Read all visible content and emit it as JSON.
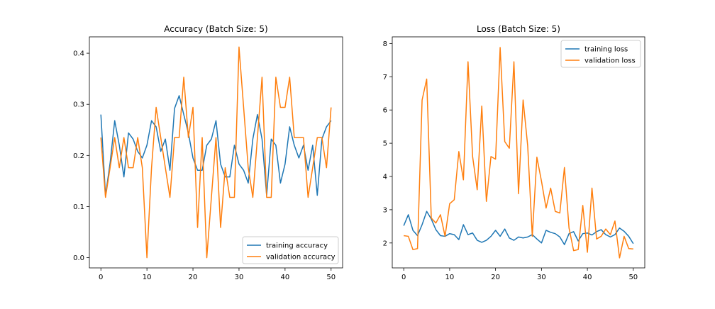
{
  "chart_data": [
    {
      "type": "line",
      "title": "Accuracy (Batch Size: 5)",
      "xlabel": "",
      "ylabel": "",
      "xlim": [
        -2.5,
        52.5
      ],
      "ylim": [
        -0.02,
        0.432
      ],
      "xticks": [
        0,
        10,
        20,
        30,
        40,
        50
      ],
      "yticks": [
        0.0,
        0.1,
        0.2,
        0.3,
        0.4
      ],
      "ytick_labels": [
        "0.0",
        "0.1",
        "0.2",
        "0.3",
        "0.4"
      ],
      "grid": false,
      "legend_position": "lower-right",
      "x": [
        0,
        1,
        2,
        3,
        4,
        5,
        6,
        7,
        8,
        9,
        10,
        11,
        12,
        13,
        14,
        15,
        16,
        17,
        18,
        19,
        20,
        21,
        22,
        23,
        24,
        25,
        26,
        27,
        28,
        29,
        30,
        31,
        32,
        33,
        34,
        35,
        36,
        37,
        38,
        39,
        40,
        41,
        42,
        43,
        44,
        45,
        46,
        47,
        48,
        49,
        50
      ],
      "series": [
        {
          "name": "training accuracy",
          "color": "#1f77b4",
          "values": [
            0.28,
            0.122,
            0.185,
            0.268,
            0.22,
            0.158,
            0.244,
            0.232,
            0.208,
            0.195,
            0.22,
            0.268,
            0.256,
            0.208,
            0.232,
            0.171,
            0.292,
            0.317,
            0.28,
            0.244,
            0.195,
            0.171,
            0.171,
            0.22,
            0.232,
            0.268,
            0.183,
            0.158,
            0.158,
            0.22,
            0.183,
            0.171,
            0.146,
            0.232,
            0.28,
            0.232,
            0.122,
            0.232,
            0.22,
            0.146,
            0.183,
            0.256,
            0.22,
            0.195,
            0.22,
            0.171,
            0.22,
            0.122,
            0.232,
            0.256,
            0.268
          ]
        },
        {
          "name": "validation accuracy",
          "color": "#ff7f0e",
          "values": [
            0.235,
            0.118,
            0.176,
            0.235,
            0.176,
            0.235,
            0.176,
            0.176,
            0.235,
            0.176,
            0.0,
            0.176,
            0.294,
            0.235,
            0.176,
            0.118,
            0.235,
            0.235,
            0.353,
            0.235,
            0.294,
            0.059,
            0.235,
            0.0,
            0.118,
            0.235,
            0.059,
            0.176,
            0.118,
            0.118,
            0.412,
            0.294,
            0.176,
            0.118,
            0.235,
            0.353,
            0.118,
            0.118,
            0.353,
            0.294,
            0.294,
            0.353,
            0.235,
            0.235,
            0.235,
            0.118,
            0.176,
            0.235,
            0.235,
            0.176,
            0.294
          ]
        }
      ]
    },
    {
      "type": "line",
      "title": "Loss (Batch Size: 5)",
      "xlabel": "",
      "ylabel": "",
      "xlim": [
        -2.5,
        52.5
      ],
      "ylim": [
        1.25,
        8.2
      ],
      "xticks": [
        0,
        10,
        20,
        30,
        40,
        50
      ],
      "yticks": [
        2,
        3,
        4,
        5,
        6,
        7,
        8
      ],
      "ytick_labels": [
        "2",
        "3",
        "4",
        "5",
        "6",
        "7",
        "8"
      ],
      "grid": false,
      "legend_position": "upper-right",
      "x": [
        0,
        1,
        2,
        3,
        4,
        5,
        6,
        7,
        8,
        9,
        10,
        11,
        12,
        13,
        14,
        15,
        16,
        17,
        18,
        19,
        20,
        21,
        22,
        23,
        24,
        25,
        26,
        27,
        28,
        29,
        30,
        31,
        32,
        33,
        34,
        35,
        36,
        37,
        38,
        39,
        40,
        41,
        42,
        43,
        44,
        45,
        46,
        47,
        48,
        49,
        50
      ],
      "series": [
        {
          "name": "training loss",
          "color": "#1f77b4",
          "values": [
            2.52,
            2.85,
            2.38,
            2.22,
            2.55,
            2.95,
            2.72,
            2.4,
            2.22,
            2.2,
            2.28,
            2.25,
            2.1,
            2.55,
            2.25,
            2.3,
            2.08,
            2.02,
            2.08,
            2.2,
            2.38,
            2.2,
            2.42,
            2.15,
            2.08,
            2.18,
            2.15,
            2.18,
            2.25,
            2.12,
            2.0,
            2.38,
            2.32,
            2.28,
            2.18,
            1.95,
            2.28,
            2.34,
            2.06,
            2.28,
            2.3,
            2.24,
            2.34,
            2.4,
            2.25,
            2.18,
            2.25,
            2.45,
            2.35,
            2.2,
            1.98
          ]
        },
        {
          "name": "validation loss",
          "color": "#ff7f0e",
          "values": [
            2.22,
            2.2,
            1.8,
            1.83,
            6.3,
            6.93,
            2.75,
            2.6,
            2.85,
            2.2,
            3.18,
            3.3,
            4.75,
            3.9,
            7.45,
            4.6,
            3.6,
            6.12,
            3.25,
            4.6,
            4.52,
            7.88,
            5.05,
            4.85,
            7.45,
            3.48,
            6.3,
            4.92,
            2.2,
            4.58,
            3.86,
            3.05,
            3.65,
            2.95,
            2.9,
            4.27,
            2.45,
            1.77,
            1.8,
            3.13,
            1.72,
            3.65,
            2.12,
            2.2,
            2.42,
            2.25,
            2.66,
            1.55,
            2.2,
            1.83,
            1.82
          ]
        }
      ]
    }
  ]
}
